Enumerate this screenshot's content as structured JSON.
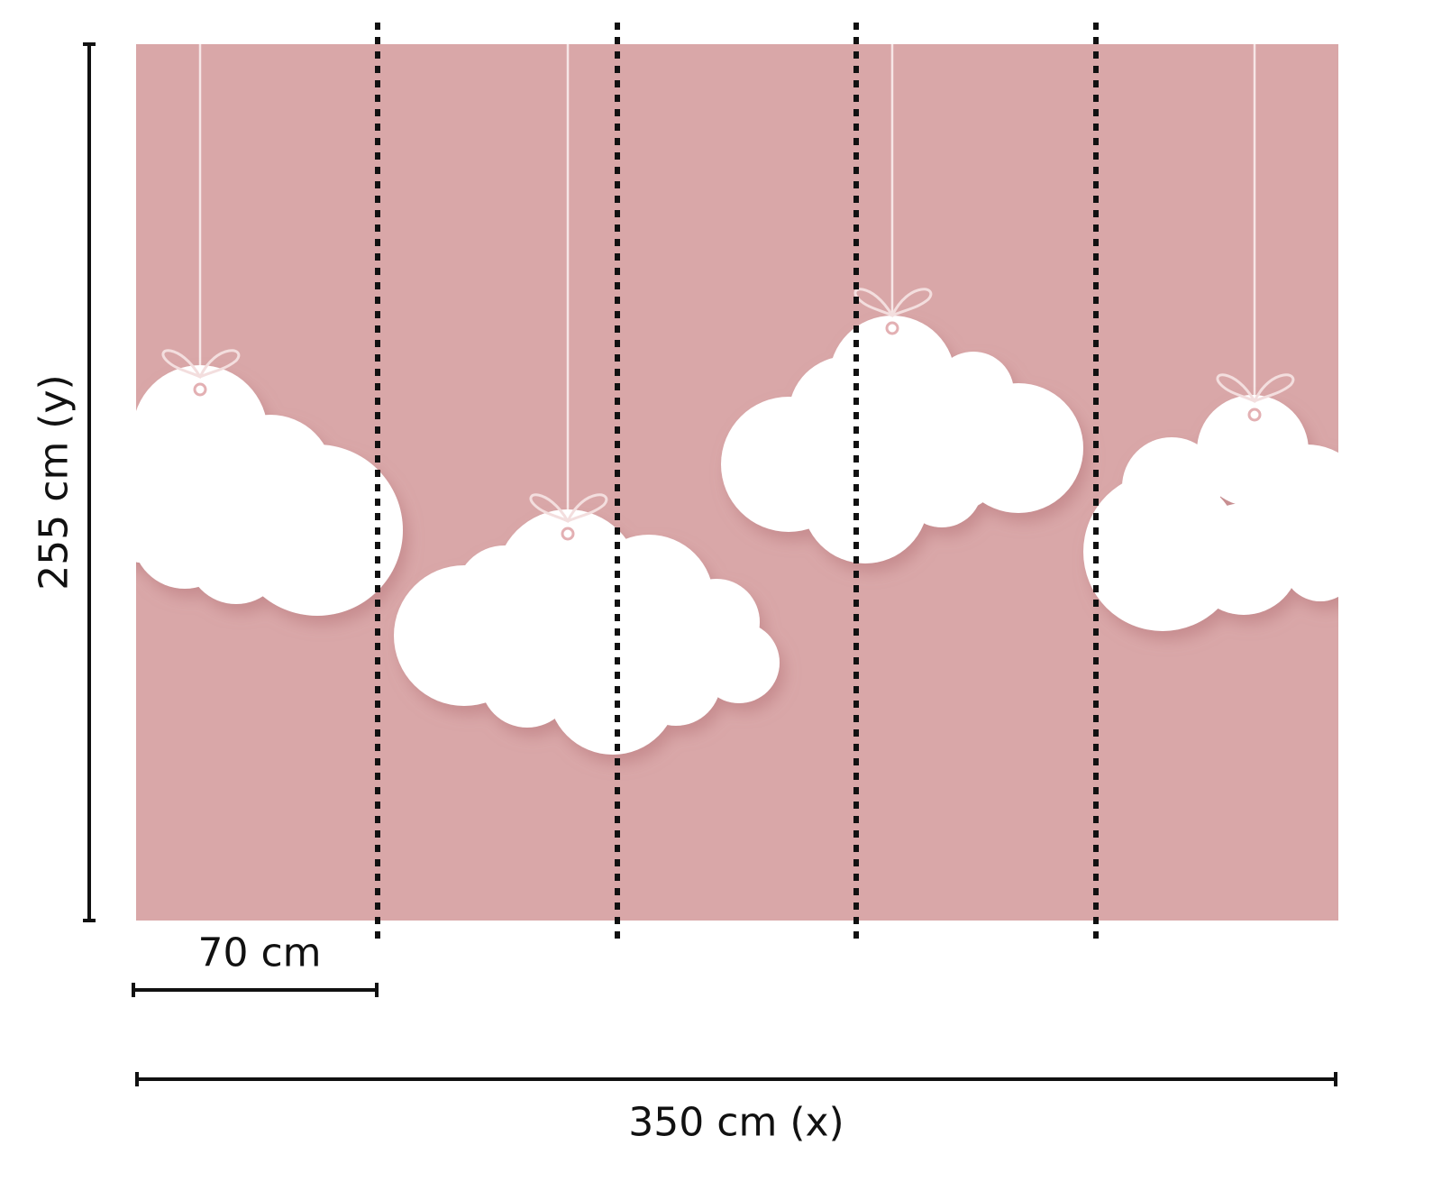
{
  "colors": {
    "background": "#d9a7a8",
    "cloud": "#ffffff",
    "shadow": "#c98e90",
    "lines": "#111111"
  },
  "dimensions": {
    "height_label": "255 cm (y)",
    "panel_width_label": "70 cm",
    "total_width_label": "350 cm (x)"
  },
  "panels": 5
}
